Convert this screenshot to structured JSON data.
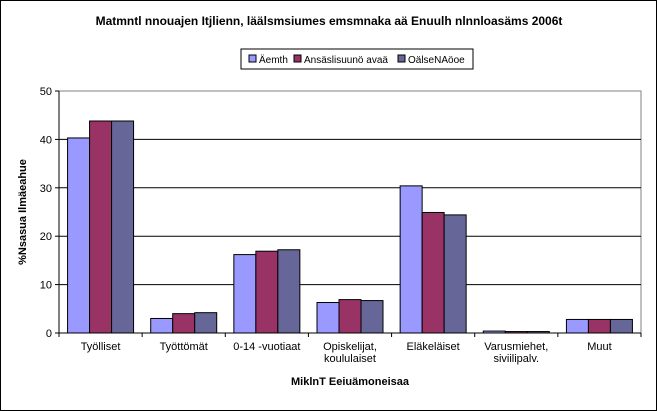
{
  "chart_data": {
    "type": "bar",
    "title": "Matmntl nnouajen Itjlienn, läälsmsiumes emsmnaka aä Enuulh nlnnloasäms 2006t",
    "xlabel": "MiklnT Eeiuämoneisaa",
    "ylabel": "%Nsasua Ilmäeahue",
    "ylim": [
      0,
      50
    ],
    "ytick_step": 10,
    "grid": true,
    "legend_position": "top",
    "categories": [
      [
        "Työlliset"
      ],
      [
        "Työttömät"
      ],
      [
        "0-14 -vuotiaat"
      ],
      [
        "Opiskelijat,",
        "koululaiset"
      ],
      [
        "Eläkeläiset"
      ],
      [
        "Varusmiehet,",
        "siviilipalv."
      ],
      [
        "Muut"
      ]
    ],
    "series": [
      {
        "name": "Äemth",
        "color": "#9999ff",
        "values": [
          40.3,
          3.0,
          16.2,
          6.3,
          30.4,
          0.4,
          2.8
        ]
      },
      {
        "name": "Ansäslisuunö avaä",
        "color": "#993366",
        "values": [
          43.8,
          4.0,
          16.9,
          6.9,
          24.9,
          0.3,
          2.8
        ]
      },
      {
        "name": "OälseNAöoe",
        "color": "#666699",
        "values": [
          43.8,
          4.2,
          17.2,
          6.7,
          24.4,
          0.3,
          2.8
        ]
      }
    ]
  }
}
